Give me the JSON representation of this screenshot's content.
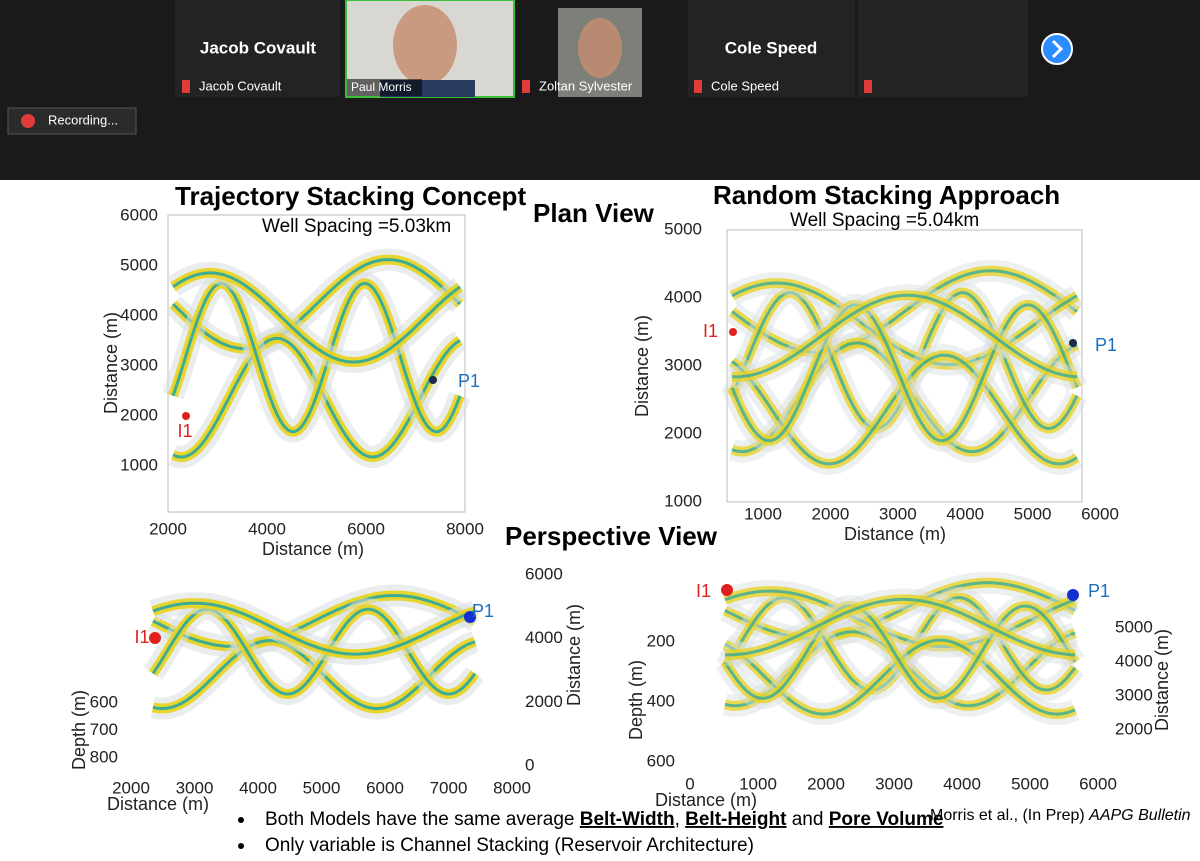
{
  "meeting": {
    "tiles": [
      {
        "title": "Jacob Covault",
        "label": "Jacob Covault"
      },
      {
        "label": "Paul Morris"
      },
      {
        "label": "Zoltan Sylvester"
      },
      {
        "title": "Cole Speed",
        "label": "Cole Speed"
      }
    ],
    "recording": "Recording..."
  },
  "slide": {
    "left_title": "Trajectory Stacking Concept",
    "right_title": "Random Stacking Approach",
    "plan_view": "Plan View",
    "perspective_view": "Perspective View",
    "left_spacing": "Well Spacing =5.03km",
    "right_spacing": "Well Spacing =5.04km",
    "plots": [
      {
        "xlabel": "Distance (m)",
        "ylabel": "Distance (m)",
        "xticks": [
          2000,
          4000,
          6000,
          8000
        ],
        "yticks": [
          1000,
          2000,
          3000,
          4000,
          5000,
          6000
        ],
        "injector": "I1",
        "producer": "P1"
      },
      {
        "xlabel": "Distance (m)",
        "ylabel": "Distance (m)",
        "xticks": [
          1000,
          2000,
          3000,
          4000,
          5000,
          6000
        ],
        "yticks": [
          1000,
          2000,
          3000,
          4000,
          5000
        ],
        "injector": "I1",
        "producer": "P1"
      },
      {
        "xlabel": "Distance (m)",
        "ylabel": "Depth (m)",
        "y2label": "Distance (m)",
        "xticks": [
          2000,
          3000,
          4000,
          5000,
          6000,
          7000,
          8000
        ],
        "yticks": [
          600,
          700,
          800
        ],
        "y2ticks": [
          0,
          2000,
          4000,
          6000
        ],
        "injector": "I1",
        "producer": "P1"
      },
      {
        "xlabel": "Distance (m)",
        "ylabel": "Depth (m)",
        "y2label": "Distance (m)",
        "xticks": [
          0,
          1000,
          2000,
          3000,
          4000,
          5000,
          6000
        ],
        "yticks": [
          200,
          400,
          600
        ],
        "y2ticks": [
          2000,
          3000,
          4000,
          5000
        ],
        "injector": "I1",
        "producer": "P1"
      }
    ],
    "bullets": [
      [
        "Both Models have the same average ",
        "Belt-Width",
        ", ",
        "Belt-Height",
        " and ",
        "Pore Volume"
      ],
      [
        "Only variable is Channel Stacking (Reservoir Architecture)"
      ]
    ],
    "citation": [
      "Morris et al., (In Prep) ",
      "AAPG Bulletin"
    ]
  }
}
